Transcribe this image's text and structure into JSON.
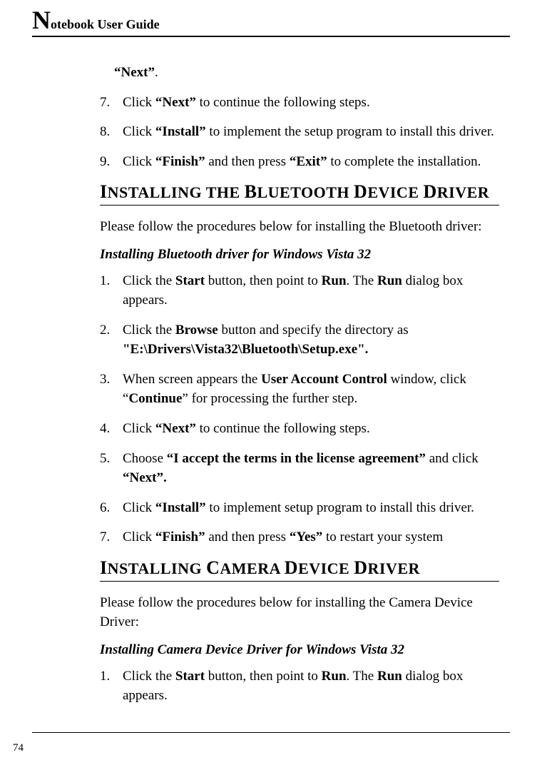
{
  "header": {
    "drop_cap": "N",
    "rest": "otebook User Guide"
  },
  "top_list": {
    "lead_fragment": "“Next”",
    "lead_tail": ".",
    "items": [
      {
        "num": "7.",
        "pre": "Click ",
        "bold1": "“Next”",
        "post": " to continue the following steps."
      },
      {
        "num": "8.",
        "pre": "Click ",
        "bold1": "“Install”",
        "post": " to implement the setup program to install this driver."
      },
      {
        "num": "9.",
        "pre": "Click ",
        "bold1": "“Finish”",
        "mid": " and then press ",
        "bold2": "“Exit”",
        "post": " to complete the installation."
      }
    ]
  },
  "bluetooth": {
    "title_parts": [
      "I",
      "NSTALLING THE ",
      "B",
      "LUETOOTH ",
      "D",
      "EVICE ",
      "D",
      "RIVER"
    ],
    "intro": "Please follow the procedures below for installing the Bluetooth driver:",
    "sub_title": "Installing Bluetooth driver for Windows Vista 32",
    "steps": [
      {
        "num": "1.",
        "t1": "Click the ",
        "b1": "Start",
        "t2": " button, then point to ",
        "b2": "Run",
        "t3": ". The ",
        "b3": "Run",
        "t4": " dialog box appears."
      },
      {
        "num": "2.",
        "t1": "Click the ",
        "b1": "Browse",
        "t2": " button and specify the directory as ",
        "b2": "\"E:\\Drivers\\Vista32\\Bluetooth\\Setup.exe\"."
      },
      {
        "num": "3.",
        "t1": "When screen appears the ",
        "b1": "User Account Control",
        "t2": " window, click “",
        "b2": "Continue",
        "t3": "” for processing the further step."
      },
      {
        "num": "4.",
        "t1": "Click ",
        "b1": "“Next”",
        "t2": " to continue the following steps."
      },
      {
        "num": "5.",
        "t1": "Choose ",
        "b1": "“I accept the terms in the license agreement”",
        "t2": " and click ",
        "b2": "“Next”."
      },
      {
        "num": "6.",
        "t1": "Click ",
        "b1": "“Install”",
        "t2": " to implement setup program to install this driver."
      },
      {
        "num": "7.",
        "t1": "Click ",
        "b1": "“Finish”",
        "t2": " and then press ",
        "b2": "“Yes”",
        "t3": " to restart your system"
      }
    ]
  },
  "camera": {
    "title_parts": [
      "I",
      "NSTALLING ",
      "C",
      "AMERA ",
      "D",
      "EVICE ",
      "D",
      "RIVER"
    ],
    "intro": "Please follow the procedures below for installing the Camera Device Driver:",
    "sub_title": "Installing Camera Device Driver for Windows Vista 32",
    "steps": [
      {
        "num": "1.",
        "t1": "Click the ",
        "b1": "Start",
        "t2": " button, then point to ",
        "b2": "Run",
        "t3": ". The ",
        "b3": "Run",
        "t4": " dialog box appears."
      }
    ]
  },
  "page_number": "74"
}
